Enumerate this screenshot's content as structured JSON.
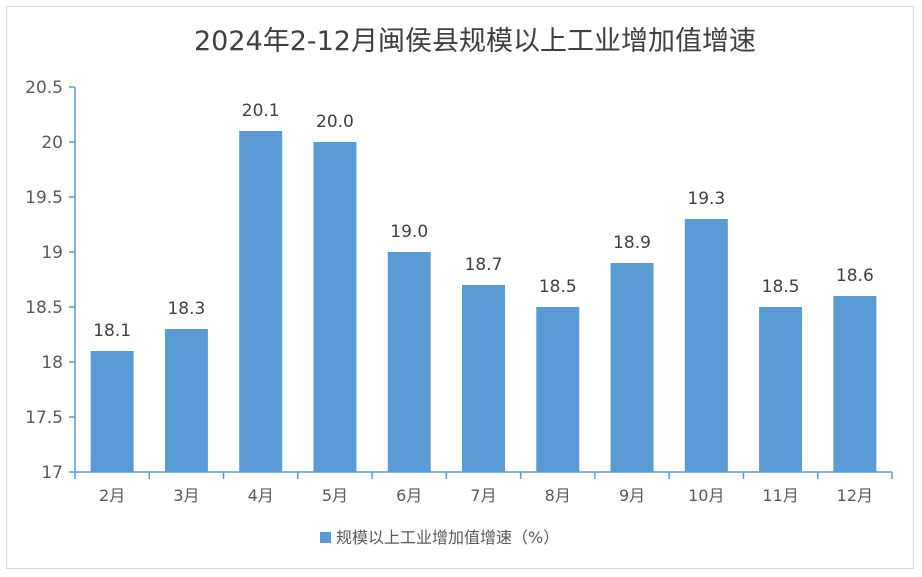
{
  "chart_data": {
    "type": "bar",
    "title": "2024年2-12月闽侯县规模以上工业增加值增速",
    "categories": [
      "2月",
      "3月",
      "4月",
      "5月",
      "6月",
      "7月",
      "8月",
      "9月",
      "10月",
      "11月",
      "12月"
    ],
    "series": [
      {
        "name": "规模以上工业增加值增速（%）",
        "values": [
          18.1,
          18.3,
          20.1,
          20.0,
          19.0,
          18.7,
          18.5,
          18.9,
          19.3,
          18.5,
          18.6
        ],
        "data_labels": [
          "18.1",
          "18.3",
          "20.1",
          "20.0",
          "19.0",
          "18.7",
          "18.5",
          "18.9",
          "19.3",
          "18.5",
          "18.6"
        ],
        "color": "#5b9bd5"
      }
    ],
    "ylim": [
      17,
      20.5
    ],
    "yticks": [
      "17",
      "17.5",
      "18",
      "18.5",
      "19",
      "19.5",
      "20",
      "20.5"
    ],
    "ytick_values": [
      17,
      17.5,
      18,
      18.5,
      19,
      19.5,
      20,
      20.5
    ],
    "xlabel": "",
    "ylabel": "",
    "grid": false,
    "legend_position": "bottom",
    "axis_color": "#5b9bd5"
  }
}
